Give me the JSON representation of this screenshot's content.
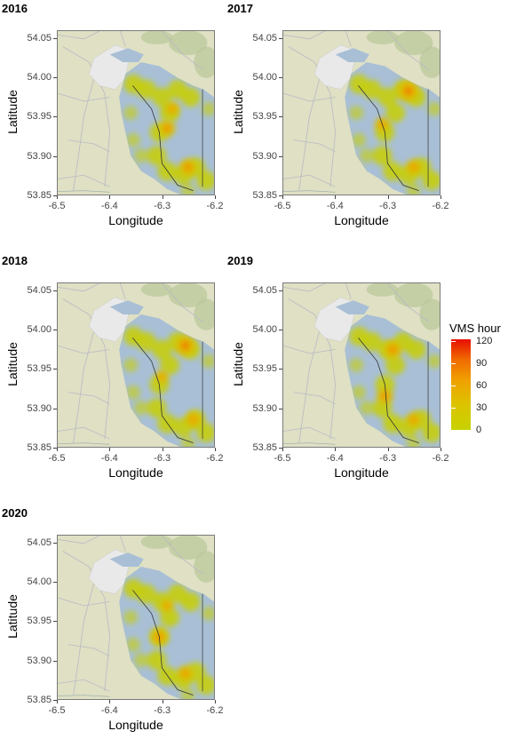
{
  "chart_data": {
    "type": "heatmap",
    "panels": [
      {
        "title": "2016",
        "hotspots": [
          [
            -6.29,
            53.935,
            0.55
          ],
          [
            -6.25,
            53.885,
            0.6
          ],
          [
            -6.28,
            53.96,
            0.4
          ]
        ]
      },
      {
        "title": "2017",
        "hotspots": [
          [
            -6.26,
            53.983,
            0.85
          ],
          [
            -6.31,
            53.94,
            0.45
          ],
          [
            -6.25,
            53.885,
            0.5
          ]
        ]
      },
      {
        "title": "2018",
        "hotspots": [
          [
            -6.255,
            53.98,
            0.8
          ],
          [
            -6.24,
            53.885,
            0.5
          ],
          [
            -6.3,
            53.94,
            0.35
          ]
        ]
      },
      {
        "title": "2019",
        "hotspots": [
          [
            -6.29,
            53.975,
            0.65
          ],
          [
            -6.305,
            53.915,
            0.55
          ],
          [
            -6.25,
            53.885,
            0.45
          ]
        ]
      },
      {
        "title": "2020",
        "hotspots": [
          [
            -6.305,
            53.93,
            0.55
          ],
          [
            -6.255,
            53.883,
            0.5
          ],
          [
            -6.29,
            53.97,
            0.35
          ]
        ]
      }
    ],
    "xlabel": "Longitude",
    "ylabel": "Latitude",
    "xlim": [
      -6.5,
      -6.2
    ],
    "ylim": [
      53.85,
      54.06
    ],
    "x_ticks": [
      "-6.5",
      "-6.4",
      "-6.3",
      "-6.2"
    ],
    "y_ticks": [
      "53.85",
      "53.90",
      "53.95",
      "54.00",
      "54.05"
    ],
    "legend": {
      "title": "VMS hour",
      "ticks": [
        "0",
        "30",
        "60",
        "90",
        "120"
      ],
      "range": [
        0,
        120
      ],
      "colors": [
        "#c7d200",
        "#dcc400",
        "#f0a000",
        "#f06a00",
        "#e80d00"
      ],
      "placement": "right"
    },
    "colors": {
      "land": "#dfe0c4",
      "sea": "#a8bfd6",
      "urban": "#e9e9e9",
      "road": "#b9b9c4"
    }
  }
}
